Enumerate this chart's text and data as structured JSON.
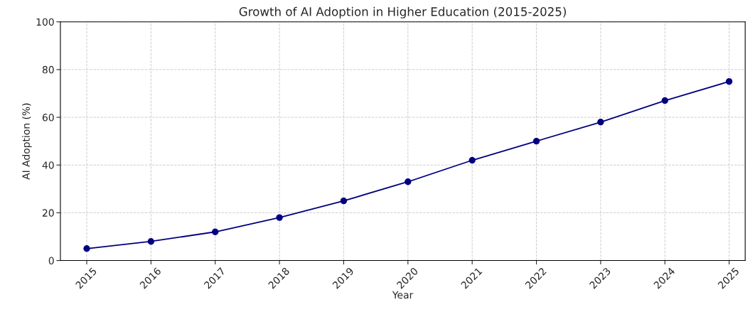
{
  "chart_data": {
    "type": "line",
    "title": "Growth of AI Adoption in Higher Education (2015-2025)",
    "xlabel": "Year",
    "ylabel": "AI Adoption (%)",
    "categories": [
      "2015",
      "2016",
      "2017",
      "2018",
      "2019",
      "2020",
      "2021",
      "2022",
      "2023",
      "2024",
      "2025"
    ],
    "series": [
      {
        "color": "#000080",
        "values": [
          5,
          8,
          12,
          18,
          25,
          33,
          42,
          50,
          58,
          67,
          75
        ]
      }
    ],
    "ylim": [
      0,
      100
    ],
    "yticks": [
      0,
      20,
      40,
      60,
      80,
      100
    ],
    "grid": true,
    "marker": "circle",
    "line_style": "solid"
  }
}
